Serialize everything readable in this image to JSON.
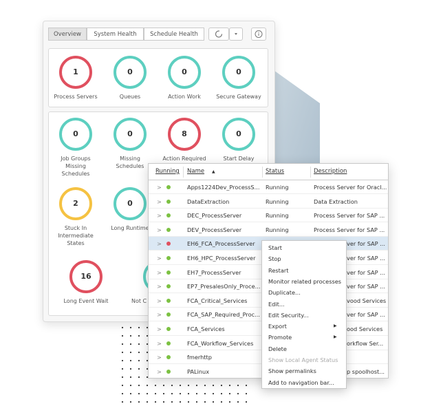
{
  "dashboard": {
    "tabs": [
      "Overview",
      "System Health",
      "Schedule Health"
    ],
    "active_tab": 0,
    "summary": [
      {
        "value": 1,
        "label": "Process Servers",
        "color": "#e0505f"
      },
      {
        "value": 0,
        "label": "Queues",
        "color": "#5dcfc0"
      },
      {
        "value": 0,
        "label": "Action Work",
        "color": "#5dcfc0"
      },
      {
        "value": 0,
        "label": "Secure Gateway",
        "color": "#5dcfc0"
      }
    ],
    "health": [
      {
        "value": 0,
        "label": "Job Groups Missing Schedules",
        "color": "#5dcfc0"
      },
      {
        "value": 0,
        "label": "Missing Schedules",
        "color": "#5dcfc0"
      },
      {
        "value": 8,
        "label": "Action Required",
        "color": "#e0505f"
      },
      {
        "value": 0,
        "label": "Start Delay",
        "color": "#5dcfc0"
      },
      {
        "value": 2,
        "label": "Stuck In Intermediate States",
        "color": "#f5c242"
      },
      {
        "value": 0,
        "label": "Long Runtime",
        "color": "#5dcfc0"
      },
      {
        "value": 16,
        "label": "Long Event Wait",
        "color": "#e0505f"
      },
      {
        "label": "Not C",
        "color": "#5dcfc0"
      }
    ]
  },
  "table": {
    "columns": [
      "Running",
      "Name",
      "Status",
      "Description"
    ],
    "rows": [
      {
        "dot": "#7cc142",
        "name": "Apps1224Dev_ProcessS...",
        "status": "Running",
        "description": "Process Server for Oracl..."
      },
      {
        "dot": "#7cc142",
        "name": "DataExtraction",
        "status": "Running",
        "description": "Data Extraction"
      },
      {
        "dot": "#7cc142",
        "name": "DEC_ProcessServer",
        "status": "Running",
        "description": "Process Server for SAP ..."
      },
      {
        "dot": "#7cc142",
        "name": "DEV_ProcessServer",
        "status": "Running",
        "description": "Process Server for SAP ..."
      },
      {
        "dot": "#e0505f",
        "name": "EH6_FCA_ProcessServer",
        "description": "ver for SAP ...",
        "selected": true
      },
      {
        "dot": "#7cc142",
        "name": "EH6_HPC_ProcessServer",
        "description": "ver for SAP ..."
      },
      {
        "dot": "#7cc142",
        "name": "EH7_ProcessServer",
        "description": "ver for SAP ..."
      },
      {
        "dot": "#7cc142",
        "name": "EP7_PresalesOnly_Proce...",
        "description": "ver for SAP ..."
      },
      {
        "dot": "#7cc142",
        "name": "FCA_Critical_Services",
        "description": "vood Services"
      },
      {
        "dot": "#7cc142",
        "name": "FCA_SAP_Required_Proc...",
        "description": "ver for SAP ..."
      },
      {
        "dot": "#7cc142",
        "name": "FCA_Services",
        "description": "ood Services"
      },
      {
        "dot": "#7cc142",
        "name": "FCA_Workflow_Services",
        "description": "orkflow Ser..."
      },
      {
        "dot": "#7cc142",
        "name": "fmerhttp"
      },
      {
        "dot": "#7cc142",
        "name": "PALinux",
        "description": "p spoolhost..."
      }
    ]
  },
  "context_menu": {
    "items": [
      {
        "label": "Start"
      },
      {
        "label": "Stop"
      },
      {
        "label": "Restart"
      },
      {
        "label": "Monitor related processes"
      },
      {
        "label": "Duplicate..."
      },
      {
        "label": "Edit..."
      },
      {
        "label": "Edit Security..."
      },
      {
        "label": "Export",
        "submenu": true
      },
      {
        "label": "Promote",
        "submenu": true
      },
      {
        "label": "Delete"
      },
      {
        "label": "Show Local Agent Status",
        "disabled": true
      },
      {
        "label": "Show permalinks"
      },
      {
        "label": "Add to navigation bar..."
      }
    ]
  }
}
